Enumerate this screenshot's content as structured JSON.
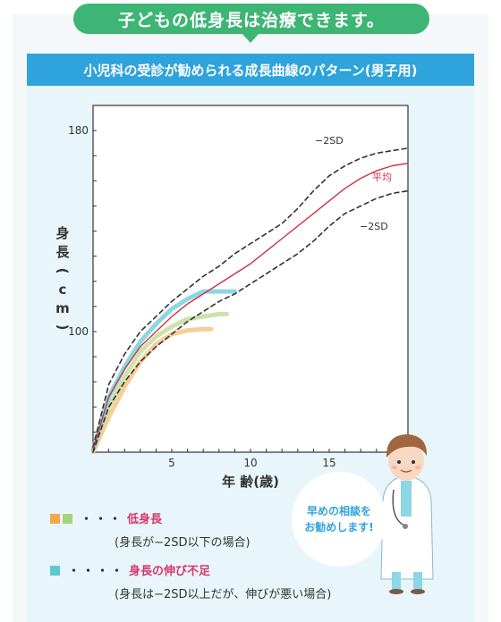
{
  "headline": "子どもの低身長は治療できます。",
  "card_title": "小児科の受診が勧められる成長曲線のパターン(男子用)",
  "chart_data": {
    "type": "line",
    "xlabel": "年 齢(歳)",
    "ylabel": "身長(cm)",
    "x_ticks": [
      5,
      10,
      15
    ],
    "y_ticks": [
      100,
      180
    ],
    "xlim": [
      0,
      20
    ],
    "ylim": [
      52,
      190
    ],
    "series": [
      {
        "name": "−2SD",
        "style": "dashed",
        "color": "#333333",
        "x": [
          0,
          1,
          2,
          3,
          4,
          5,
          6,
          7,
          8,
          9,
          10,
          11,
          12,
          13,
          14,
          15,
          16,
          17,
          18,
          19,
          20
        ],
        "y": [
          54,
          79,
          91,
          100,
          106,
          112,
          117,
          122,
          126,
          131,
          135,
          139,
          143,
          149,
          156,
          162,
          166,
          169,
          171,
          172,
          173
        ]
      },
      {
        "name": "平均",
        "style": "solid",
        "color": "#cc3344",
        "x": [
          0,
          1,
          2,
          3,
          4,
          5,
          6,
          7,
          8,
          9,
          10,
          11,
          12,
          13,
          14,
          15,
          16,
          17,
          18,
          19,
          20
        ],
        "y": [
          53,
          74,
          85,
          94,
          100,
          106,
          111,
          115,
          119,
          123,
          127,
          132,
          137,
          142,
          147,
          152,
          157,
          161,
          164,
          166,
          167
        ]
      },
      {
        "name": "−2SD",
        "style": "dashed",
        "color": "#333333",
        "x": [
          0,
          1,
          2,
          3,
          4,
          5,
          6,
          7,
          8,
          9,
          10,
          11,
          12,
          13,
          14,
          15,
          16,
          17,
          18,
          19,
          20
        ],
        "y": [
          52,
          70,
          80,
          88,
          94,
          99,
          104,
          108,
          112,
          115,
          119,
          123,
          127,
          131,
          136,
          142,
          147,
          150,
          153,
          155,
          156
        ]
      },
      {
        "name": "低身長",
        "style": "highlight",
        "color": "#f5c98c",
        "x": [
          0,
          1,
          2,
          3,
          4,
          5,
          6,
          7,
          7.5
        ],
        "y": [
          52,
          66,
          78,
          88,
          95,
          99,
          100.5,
          101,
          101
        ]
      },
      {
        "name": "低身長",
        "style": "highlight",
        "color": "#c9dfa3",
        "x": [
          0,
          1,
          2,
          3,
          4,
          5,
          6,
          7,
          8,
          8.5
        ],
        "y": [
          53,
          70,
          82,
          92,
          98,
          102,
          105,
          106,
          107,
          107
        ]
      },
      {
        "name": "身長の伸び不足",
        "style": "highlight",
        "color": "#7fd3df",
        "x": [
          0,
          1,
          2,
          3,
          4,
          5,
          6,
          7,
          8,
          9
        ],
        "y": [
          53,
          74,
          86,
          96,
          103,
          109,
          113,
          116,
          116,
          116
        ]
      }
    ]
  },
  "labels": {
    "upper": "−2SD",
    "mean": "平均",
    "lower": "−2SD"
  },
  "legend": {
    "dots": "・・・",
    "dots2": "・・・・",
    "cat1": "低身長",
    "cat1_note": "(身長が−2SD以下の場合)",
    "cat2": "身長の伸び不足",
    "cat2_note": "(身長は−2SD以上だが、伸びが悪い場合)",
    "swatch_colors": [
      "#f5a74a",
      "#a5d47a",
      "#5cc9cf"
    ]
  },
  "bubble": {
    "line1": "早めの相談を",
    "line2": "お勧めします!"
  }
}
